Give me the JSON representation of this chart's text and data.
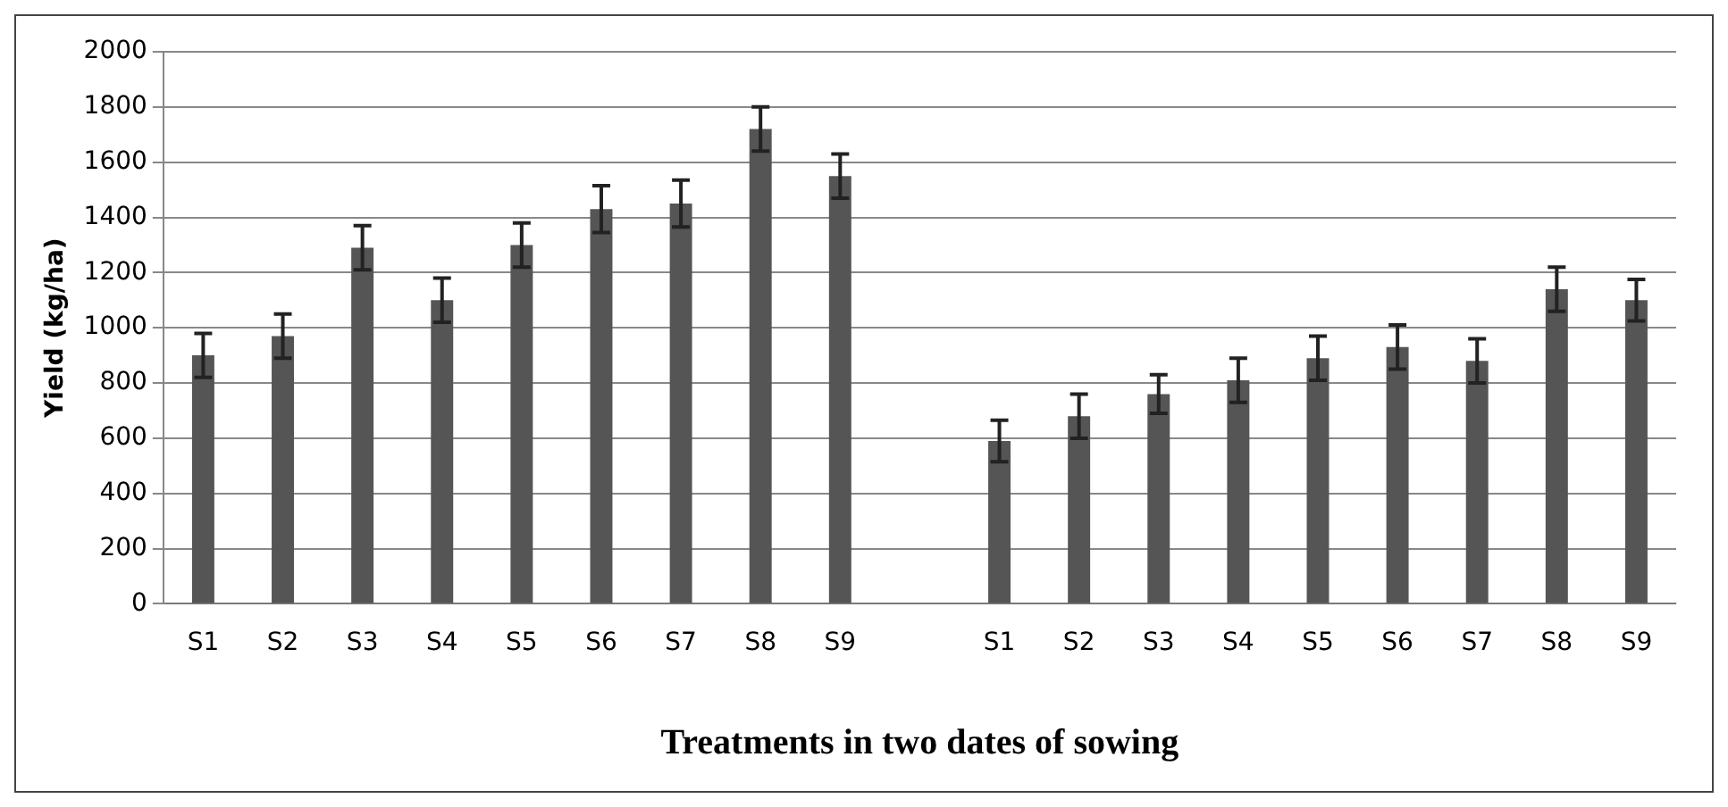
{
  "chart_data": {
    "type": "bar",
    "xlabel": "Treatments in two dates of sowing",
    "ylabel": "Yield (kg/ha)",
    "categories": [
      "S1",
      "S2",
      "S3",
      "S4",
      "S5",
      "S6",
      "S7",
      "S8",
      "S9",
      null,
      "S1",
      "S2",
      "S3",
      "S4",
      "S5",
      "S6",
      "S7",
      "S8",
      "S9"
    ],
    "values": [
      900,
      970,
      1290,
      1100,
      1300,
      1430,
      1450,
      1720,
      1550,
      null,
      590,
      680,
      760,
      810,
      890,
      930,
      880,
      1140,
      1100
    ],
    "errors": [
      80,
      80,
      80,
      80,
      80,
      85,
      85,
      80,
      80,
      null,
      75,
      80,
      70,
      80,
      80,
      80,
      80,
      80,
      75
    ],
    "color": "#555555",
    "ylim": [
      0,
      2000
    ],
    "yticks": [
      0,
      200,
      400,
      600,
      800,
      1000,
      1200,
      1400,
      1600,
      1800,
      2000
    ],
    "grid": "y",
    "legend": false
  }
}
